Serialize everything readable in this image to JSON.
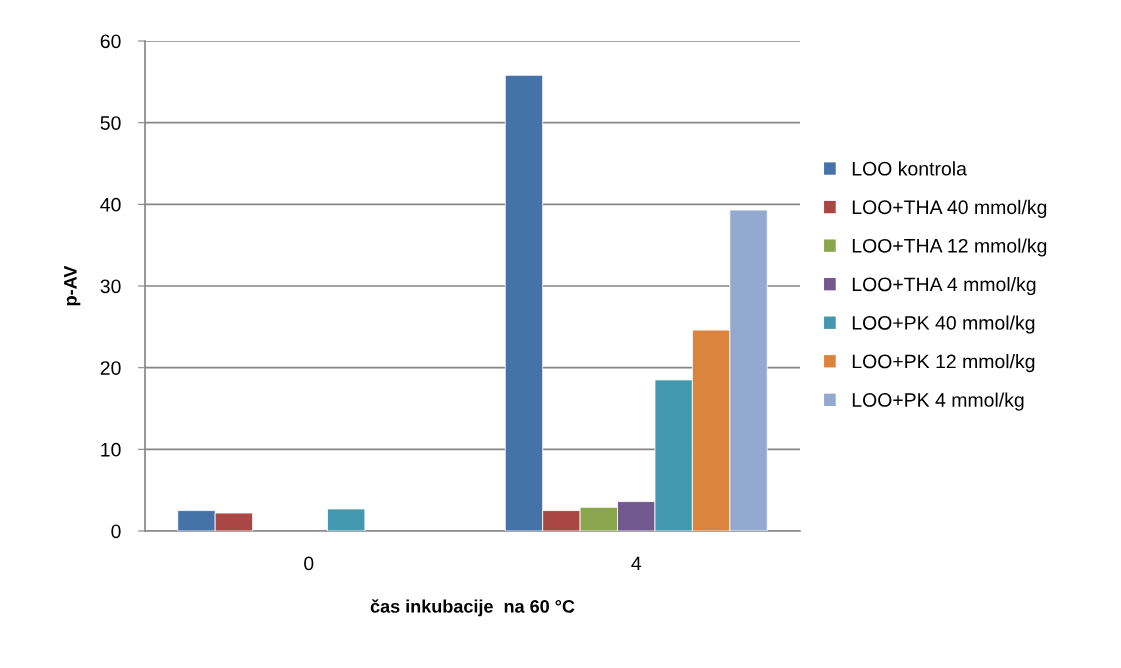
{
  "chart_data": {
    "type": "bar",
    "xlabel": "čas inkubacije  na 60 °C",
    "ylabel": "p-AV",
    "categories": [
      "0",
      "4"
    ],
    "series": [
      {
        "name": "LOO kontrola",
        "color": "#4572a7",
        "values": [
          2.5,
          55.8
        ]
      },
      {
        "name": "LOO+THA 40 mmol/kg",
        "color": "#aa4643",
        "values": [
          2.2,
          2.5
        ]
      },
      {
        "name": "LOO+THA 12 mmol/kg",
        "color": "#89a54e",
        "values": [
          null,
          2.9
        ]
      },
      {
        "name": "LOO+THA 4 mmol/kg",
        "color": "#71588f",
        "values": [
          null,
          3.6
        ]
      },
      {
        "name": "LOO+PK 40 mmol/kg",
        "color": "#4198af",
        "values": [
          2.7,
          18.5
        ]
      },
      {
        "name": "LOO+PK 12 mmol/kg",
        "color": "#db843d",
        "values": [
          null,
          24.6
        ]
      },
      {
        "name": "LOO+PK 4 mmol/kg",
        "color": "#93a9cf",
        "values": [
          null,
          39.3
        ]
      }
    ],
    "ylim": [
      0,
      60
    ],
    "yticks": [
      0,
      10,
      20,
      30,
      40,
      50,
      60
    ],
    "grid": "y",
    "legend": "right"
  }
}
